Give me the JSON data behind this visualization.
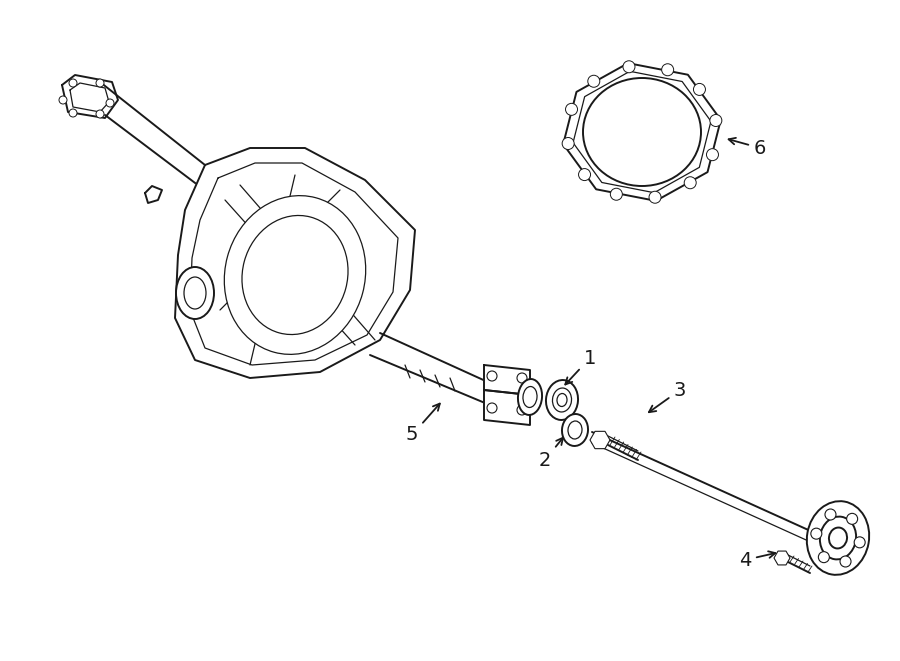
{
  "bg_color": "#ffffff",
  "line_color": "#1a1a1a",
  "lw": 1.4,
  "tlw": 0.9,
  "figsize": [
    9.0,
    6.61
  ],
  "dpi": 100
}
